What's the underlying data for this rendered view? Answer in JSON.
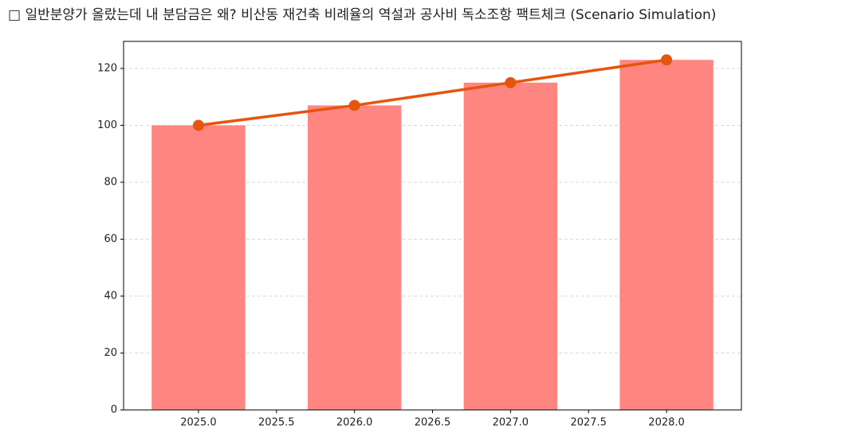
{
  "chart_data": {
    "type": "bar",
    "title": "□ 일반분양가 올랐는데 내 분담금은 왜? 비산동 재건축 비례율의 역설과 공사비 독소조항 팩트체크 (Scenario Simulation)",
    "x": [
      2025,
      2026,
      2027,
      2028
    ],
    "series": [
      {
        "type": "bar",
        "color": "#ff8581",
        "values": [
          100,
          107,
          115,
          123
        ]
      },
      {
        "type": "line",
        "color": "#e6550d",
        "values": [
          100,
          107,
          115,
          123
        ]
      }
    ],
    "xlim": [
      2024.52,
      2028.48
    ],
    "xticks": [
      {
        "value": 2025,
        "label": "2025.0"
      },
      {
        "value": 2025.5,
        "label": "2025.5"
      },
      {
        "value": 2026,
        "label": "2026.0"
      },
      {
        "value": 2026.5,
        "label": "2026.5"
      },
      {
        "value": 2027,
        "label": "2027.0"
      },
      {
        "value": 2027.5,
        "label": "2027.5"
      },
      {
        "value": 2028,
        "label": "2028.0"
      }
    ],
    "ylim": [
      0,
      129.5
    ],
    "yticks": [
      0,
      20,
      40,
      60,
      80,
      100,
      120
    ],
    "grid": true
  }
}
